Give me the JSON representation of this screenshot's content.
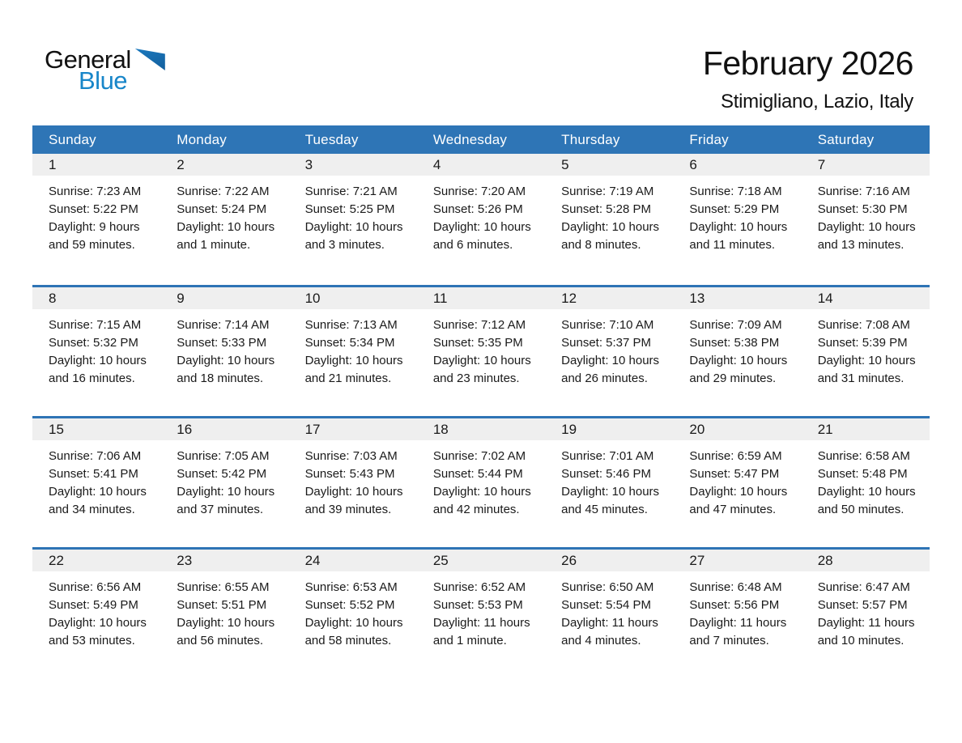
{
  "logo": {
    "general": "General",
    "blue": "Blue"
  },
  "header": {
    "month_year": "February 2026",
    "location": "Stimigliano, Lazio, Italy"
  },
  "colors": {
    "header_blue": "#2E75B6",
    "row_separator_blue": "#2E74B5",
    "day_band_gray": "#EFEFEF",
    "logo_blue": "#1886C9",
    "logo_triangle_blue": "#1B79BE",
    "text_black": "#1A1A1A"
  },
  "calendar": {
    "weekdays": [
      "Sunday",
      "Monday",
      "Tuesday",
      "Wednesday",
      "Thursday",
      "Friday",
      "Saturday"
    ],
    "weeks": [
      [
        {
          "day": "1",
          "sunrise": "Sunrise: 7:23 AM",
          "sunset": "Sunset: 5:22 PM",
          "daylight_line1": "Daylight: 9 hours",
          "daylight_line2": "and 59 minutes."
        },
        {
          "day": "2",
          "sunrise": "Sunrise: 7:22 AM",
          "sunset": "Sunset: 5:24 PM",
          "daylight_line1": "Daylight: 10 hours",
          "daylight_line2": "and 1 minute."
        },
        {
          "day": "3",
          "sunrise": "Sunrise: 7:21 AM",
          "sunset": "Sunset: 5:25 PM",
          "daylight_line1": "Daylight: 10 hours",
          "daylight_line2": "and 3 minutes."
        },
        {
          "day": "4",
          "sunrise": "Sunrise: 7:20 AM",
          "sunset": "Sunset: 5:26 PM",
          "daylight_line1": "Daylight: 10 hours",
          "daylight_line2": "and 6 minutes."
        },
        {
          "day": "5",
          "sunrise": "Sunrise: 7:19 AM",
          "sunset": "Sunset: 5:28 PM",
          "daylight_line1": "Daylight: 10 hours",
          "daylight_line2": "and 8 minutes."
        },
        {
          "day": "6",
          "sunrise": "Sunrise: 7:18 AM",
          "sunset": "Sunset: 5:29 PM",
          "daylight_line1": "Daylight: 10 hours",
          "daylight_line2": "and 11 minutes."
        },
        {
          "day": "7",
          "sunrise": "Sunrise: 7:16 AM",
          "sunset": "Sunset: 5:30 PM",
          "daylight_line1": "Daylight: 10 hours",
          "daylight_line2": "and 13 minutes."
        }
      ],
      [
        {
          "day": "8",
          "sunrise": "Sunrise: 7:15 AM",
          "sunset": "Sunset: 5:32 PM",
          "daylight_line1": "Daylight: 10 hours",
          "daylight_line2": "and 16 minutes."
        },
        {
          "day": "9",
          "sunrise": "Sunrise: 7:14 AM",
          "sunset": "Sunset: 5:33 PM",
          "daylight_line1": "Daylight: 10 hours",
          "daylight_line2": "and 18 minutes."
        },
        {
          "day": "10",
          "sunrise": "Sunrise: 7:13 AM",
          "sunset": "Sunset: 5:34 PM",
          "daylight_line1": "Daylight: 10 hours",
          "daylight_line2": "and 21 minutes."
        },
        {
          "day": "11",
          "sunrise": "Sunrise: 7:12 AM",
          "sunset": "Sunset: 5:35 PM",
          "daylight_line1": "Daylight: 10 hours",
          "daylight_line2": "and 23 minutes."
        },
        {
          "day": "12",
          "sunrise": "Sunrise: 7:10 AM",
          "sunset": "Sunset: 5:37 PM",
          "daylight_line1": "Daylight: 10 hours",
          "daylight_line2": "and 26 minutes."
        },
        {
          "day": "13",
          "sunrise": "Sunrise: 7:09 AM",
          "sunset": "Sunset: 5:38 PM",
          "daylight_line1": "Daylight: 10 hours",
          "daylight_line2": "and 29 minutes."
        },
        {
          "day": "14",
          "sunrise": "Sunrise: 7:08 AM",
          "sunset": "Sunset: 5:39 PM",
          "daylight_line1": "Daylight: 10 hours",
          "daylight_line2": "and 31 minutes."
        }
      ],
      [
        {
          "day": "15",
          "sunrise": "Sunrise: 7:06 AM",
          "sunset": "Sunset: 5:41 PM",
          "daylight_line1": "Daylight: 10 hours",
          "daylight_line2": "and 34 minutes."
        },
        {
          "day": "16",
          "sunrise": "Sunrise: 7:05 AM",
          "sunset": "Sunset: 5:42 PM",
          "daylight_line1": "Daylight: 10 hours",
          "daylight_line2": "and 37 minutes."
        },
        {
          "day": "17",
          "sunrise": "Sunrise: 7:03 AM",
          "sunset": "Sunset: 5:43 PM",
          "daylight_line1": "Daylight: 10 hours",
          "daylight_line2": "and 39 minutes."
        },
        {
          "day": "18",
          "sunrise": "Sunrise: 7:02 AM",
          "sunset": "Sunset: 5:44 PM",
          "daylight_line1": "Daylight: 10 hours",
          "daylight_line2": "and 42 minutes."
        },
        {
          "day": "19",
          "sunrise": "Sunrise: 7:01 AM",
          "sunset": "Sunset: 5:46 PM",
          "daylight_line1": "Daylight: 10 hours",
          "daylight_line2": "and 45 minutes."
        },
        {
          "day": "20",
          "sunrise": "Sunrise: 6:59 AM",
          "sunset": "Sunset: 5:47 PM",
          "daylight_line1": "Daylight: 10 hours",
          "daylight_line2": "and 47 minutes."
        },
        {
          "day": "21",
          "sunrise": "Sunrise: 6:58 AM",
          "sunset": "Sunset: 5:48 PM",
          "daylight_line1": "Daylight: 10 hours",
          "daylight_line2": "and 50 minutes."
        }
      ],
      [
        {
          "day": "22",
          "sunrise": "Sunrise: 6:56 AM",
          "sunset": "Sunset: 5:49 PM",
          "daylight_line1": "Daylight: 10 hours",
          "daylight_line2": "and 53 minutes."
        },
        {
          "day": "23",
          "sunrise": "Sunrise: 6:55 AM",
          "sunset": "Sunset: 5:51 PM",
          "daylight_line1": "Daylight: 10 hours",
          "daylight_line2": "and 56 minutes."
        },
        {
          "day": "24",
          "sunrise": "Sunrise: 6:53 AM",
          "sunset": "Sunset: 5:52 PM",
          "daylight_line1": "Daylight: 10 hours",
          "daylight_line2": "and 58 minutes."
        },
        {
          "day": "25",
          "sunrise": "Sunrise: 6:52 AM",
          "sunset": "Sunset: 5:53 PM",
          "daylight_line1": "Daylight: 11 hours",
          "daylight_line2": "and 1 minute."
        },
        {
          "day": "26",
          "sunrise": "Sunrise: 6:50 AM",
          "sunset": "Sunset: 5:54 PM",
          "daylight_line1": "Daylight: 11 hours",
          "daylight_line2": "and 4 minutes."
        },
        {
          "day": "27",
          "sunrise": "Sunrise: 6:48 AM",
          "sunset": "Sunset: 5:56 PM",
          "daylight_line1": "Daylight: 11 hours",
          "daylight_line2": "and 7 minutes."
        },
        {
          "day": "28",
          "sunrise": "Sunrise: 6:47 AM",
          "sunset": "Sunset: 5:57 PM",
          "daylight_line1": "Daylight: 11 hours",
          "daylight_line2": "and 10 minutes."
        }
      ]
    ]
  }
}
